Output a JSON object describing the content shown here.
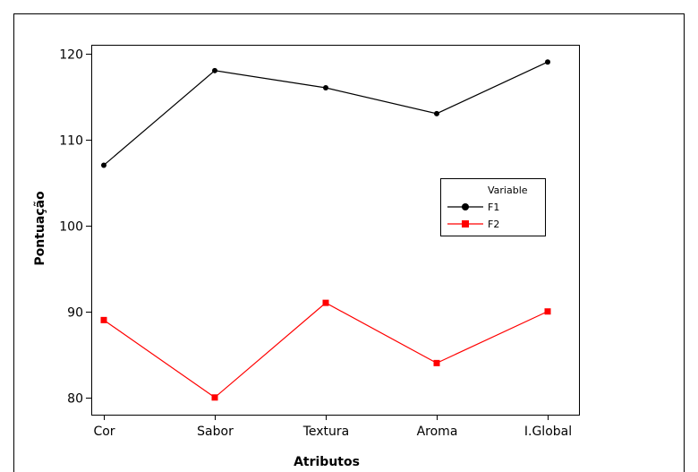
{
  "chart_data": {
    "type": "line",
    "categories": [
      "Cor",
      "Sabor",
      "Textura",
      "Aroma",
      "I.Global"
    ],
    "series": [
      {
        "name": "F1",
        "values": [
          107,
          118,
          116,
          113,
          119
        ],
        "color": "#000000",
        "marker": "circle"
      },
      {
        "name": "F2",
        "values": [
          89,
          80,
          91,
          84,
          90
        ],
        "color": "#ff0000",
        "marker": "square"
      }
    ],
    "xlabel": "Atributos",
    "ylabel": "Pontuação",
    "ylim": [
      78,
      121
    ],
    "yticks": [
      80,
      90,
      100,
      110,
      120
    ],
    "grid": false,
    "legend": {
      "title": "Variable",
      "placement": "right-middle"
    }
  }
}
